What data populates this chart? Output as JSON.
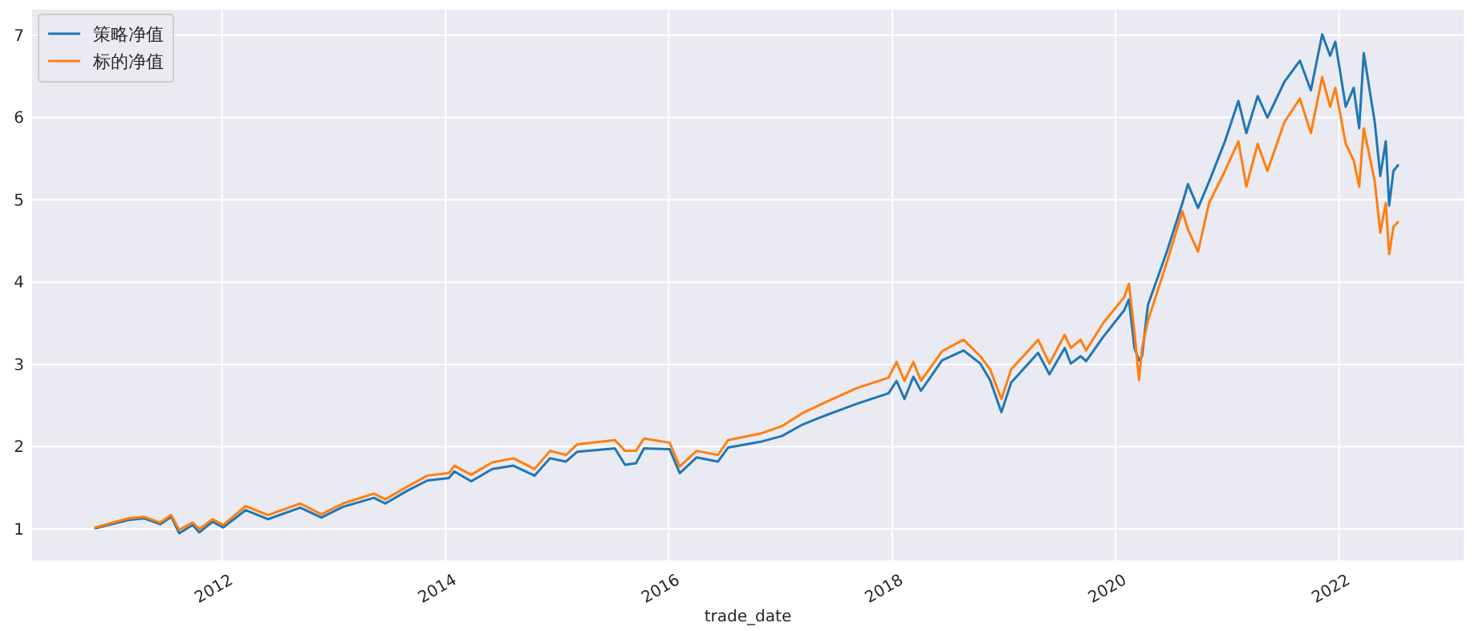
{
  "chart_data": {
    "type": "line",
    "xlabel": "trade_date",
    "legend": "top left",
    "grid": true,
    "line_style": "solid",
    "xlim": [
      "2010-04-20",
      "2023-02-13"
    ],
    "ylim": [
      0.62,
      7.31
    ],
    "xticks": [
      {
        "value": "2012-01-01",
        "label": "2012"
      },
      {
        "value": "2014-01-01",
        "label": "2014"
      },
      {
        "value": "2016-01-01",
        "label": "2016"
      },
      {
        "value": "2018-01-01",
        "label": "2018"
      },
      {
        "value": "2020-01-01",
        "label": "2020"
      },
      {
        "value": "2022-01-01",
        "label": "2022"
      }
    ],
    "yticks": [
      1,
      2,
      3,
      4,
      5,
      6,
      7
    ],
    "x": [
      "2010-11-13",
      "2011-02-28",
      "2011-04-20",
      "2011-06-13",
      "2011-07-19",
      "2011-08-14",
      "2011-09-27",
      "2011-10-19",
      "2011-12-01",
      "2012-01-05",
      "2012-03-18",
      "2012-05-30",
      "2012-09-13",
      "2012-11-21",
      "2013-01-30",
      "2013-05-12",
      "2013-06-18",
      "2013-08-26",
      "2013-11-03",
      "2014-01-12",
      "2014-01-30",
      "2014-03-26",
      "2014-06-03",
      "2014-08-11",
      "2014-10-19",
      "2014-12-09",
      "2015-01-30",
      "2015-03-08",
      "2015-07-09",
      "2015-08-11",
      "2015-09-16",
      "2015-10-12",
      "2016-01-04",
      "2016-02-06",
      "2016-04-01",
      "2016-06-10",
      "2016-07-13",
      "2016-10-27",
      "2017-01-05",
      "2017-03-14",
      "2017-05-27",
      "2017-09-06",
      "2017-12-20",
      "2018-01-15",
      "2018-02-10",
      "2018-03-11",
      "2018-04-05",
      "2018-06-13",
      "2018-08-22",
      "2018-10-16",
      "2018-11-17",
      "2018-12-24",
      "2019-01-25",
      "2019-04-23",
      "2019-05-30",
      "2019-07-19",
      "2019-08-08",
      "2019-09-09",
      "2019-09-27",
      "2019-11-21",
      "2020-01-30",
      "2020-02-14",
      "2020-03-03",
      "2020-03-18",
      "2020-03-28",
      "2020-04-16",
      "2020-06-17",
      "2020-08-07",
      "2020-08-25",
      "2020-09-27",
      "2020-11-02",
      "2020-12-24",
      "2021-02-06",
      "2021-03-04",
      "2021-04-10",
      "2021-05-12",
      "2021-07-06",
      "2021-08-26",
      "2021-10-01",
      "2021-11-07",
      "2021-12-03",
      "2021-12-20",
      "2022-01-23",
      "2022-02-18",
      "2022-03-08",
      "2022-03-23",
      "2022-04-28",
      "2022-05-16",
      "2022-06-03",
      "2022-06-14",
      "2022-06-28",
      "2022-07-13"
    ],
    "series": [
      {
        "name": "策略净值",
        "color": "#1f77b4",
        "values": [
          1.01,
          1.11,
          1.13,
          1.06,
          1.15,
          0.95,
          1.05,
          0.96,
          1.09,
          1.02,
          1.23,
          1.12,
          1.26,
          1.14,
          1.27,
          1.38,
          1.31,
          1.46,
          1.59,
          1.62,
          1.7,
          1.58,
          1.73,
          1.77,
          1.65,
          1.86,
          1.82,
          1.94,
          1.98,
          1.78,
          1.8,
          1.98,
          1.97,
          1.68,
          1.87,
          1.82,
          1.99,
          2.06,
          2.13,
          2.27,
          2.38,
          2.52,
          2.65,
          2.8,
          2.58,
          2.85,
          2.68,
          3.05,
          3.17,
          3.01,
          2.81,
          2.42,
          2.78,
          3.14,
          2.88,
          3.2,
          3.01,
          3.1,
          3.04,
          3.33,
          3.66,
          3.79,
          3.2,
          3.05,
          3.1,
          3.72,
          4.37,
          4.96,
          5.19,
          4.9,
          5.22,
          5.71,
          6.2,
          5.81,
          6.26,
          6.0,
          6.43,
          6.69,
          6.33,
          7.01,
          6.75,
          6.92,
          6.13,
          6.36,
          5.87,
          6.78,
          5.94,
          5.29,
          5.71,
          4.93,
          5.35,
          5.42
        ]
      },
      {
        "name": "标的净值",
        "color": "#ff7f0e",
        "values": [
          1.02,
          1.13,
          1.15,
          1.08,
          1.17,
          0.99,
          1.08,
          1.0,
          1.12,
          1.05,
          1.28,
          1.17,
          1.31,
          1.18,
          1.31,
          1.43,
          1.36,
          1.51,
          1.65,
          1.68,
          1.77,
          1.66,
          1.81,
          1.86,
          1.73,
          1.95,
          1.9,
          2.03,
          2.08,
          1.95,
          1.95,
          2.1,
          2.05,
          1.76,
          1.95,
          1.9,
          2.08,
          2.16,
          2.25,
          2.41,
          2.54,
          2.71,
          2.84,
          3.03,
          2.8,
          3.03,
          2.8,
          3.16,
          3.3,
          3.1,
          2.94,
          2.58,
          2.94,
          3.3,
          3.01,
          3.36,
          3.2,
          3.3,
          3.17,
          3.5,
          3.82,
          3.98,
          3.4,
          2.81,
          3.2,
          3.53,
          4.24,
          4.86,
          4.64,
          4.37,
          4.96,
          5.35,
          5.71,
          5.16,
          5.68,
          5.35,
          5.94,
          6.23,
          5.81,
          6.49,
          6.13,
          6.36,
          5.68,
          5.48,
          5.16,
          5.87,
          5.22,
          4.6,
          4.96,
          4.34,
          4.67,
          4.73
        ]
      }
    ]
  }
}
